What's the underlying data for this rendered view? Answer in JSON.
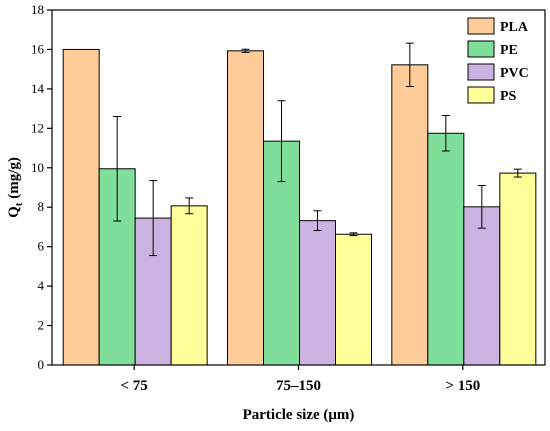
{
  "chart_data": {
    "type": "bar",
    "categories": [
      "< 75",
      "75–150",
      "> 150"
    ],
    "series": [
      {
        "name": "PLA",
        "values": [
          16.0,
          15.93,
          15.22
        ],
        "errors": [
          0.0,
          0.08,
          1.1
        ],
        "color": "#FFCC99"
      },
      {
        "name": "PE",
        "values": [
          9.95,
          11.35,
          11.75
        ],
        "errors": [
          2.65,
          2.05,
          0.9
        ],
        "color": "#7FDE99"
      },
      {
        "name": "PVC",
        "values": [
          7.45,
          7.32,
          8.02
        ],
        "errors": [
          1.9,
          0.5,
          1.08
        ],
        "color": "#CCB2E0"
      },
      {
        "name": "PS",
        "values": [
          8.07,
          6.63,
          9.73
        ],
        "errors": [
          0.4,
          0.07,
          0.2
        ],
        "color": "#FFFF99"
      }
    ],
    "xlabel": "Particle size (μm)",
    "ylabel_main": "Q",
    "ylabel_sub": "t",
    "ylabel_unit": " (mg/g)",
    "ylim": [
      0,
      18
    ],
    "yticks": [
      0,
      2,
      4,
      6,
      8,
      10,
      12,
      14,
      16,
      18
    ],
    "grid": false,
    "legend_position": "top-right"
  }
}
